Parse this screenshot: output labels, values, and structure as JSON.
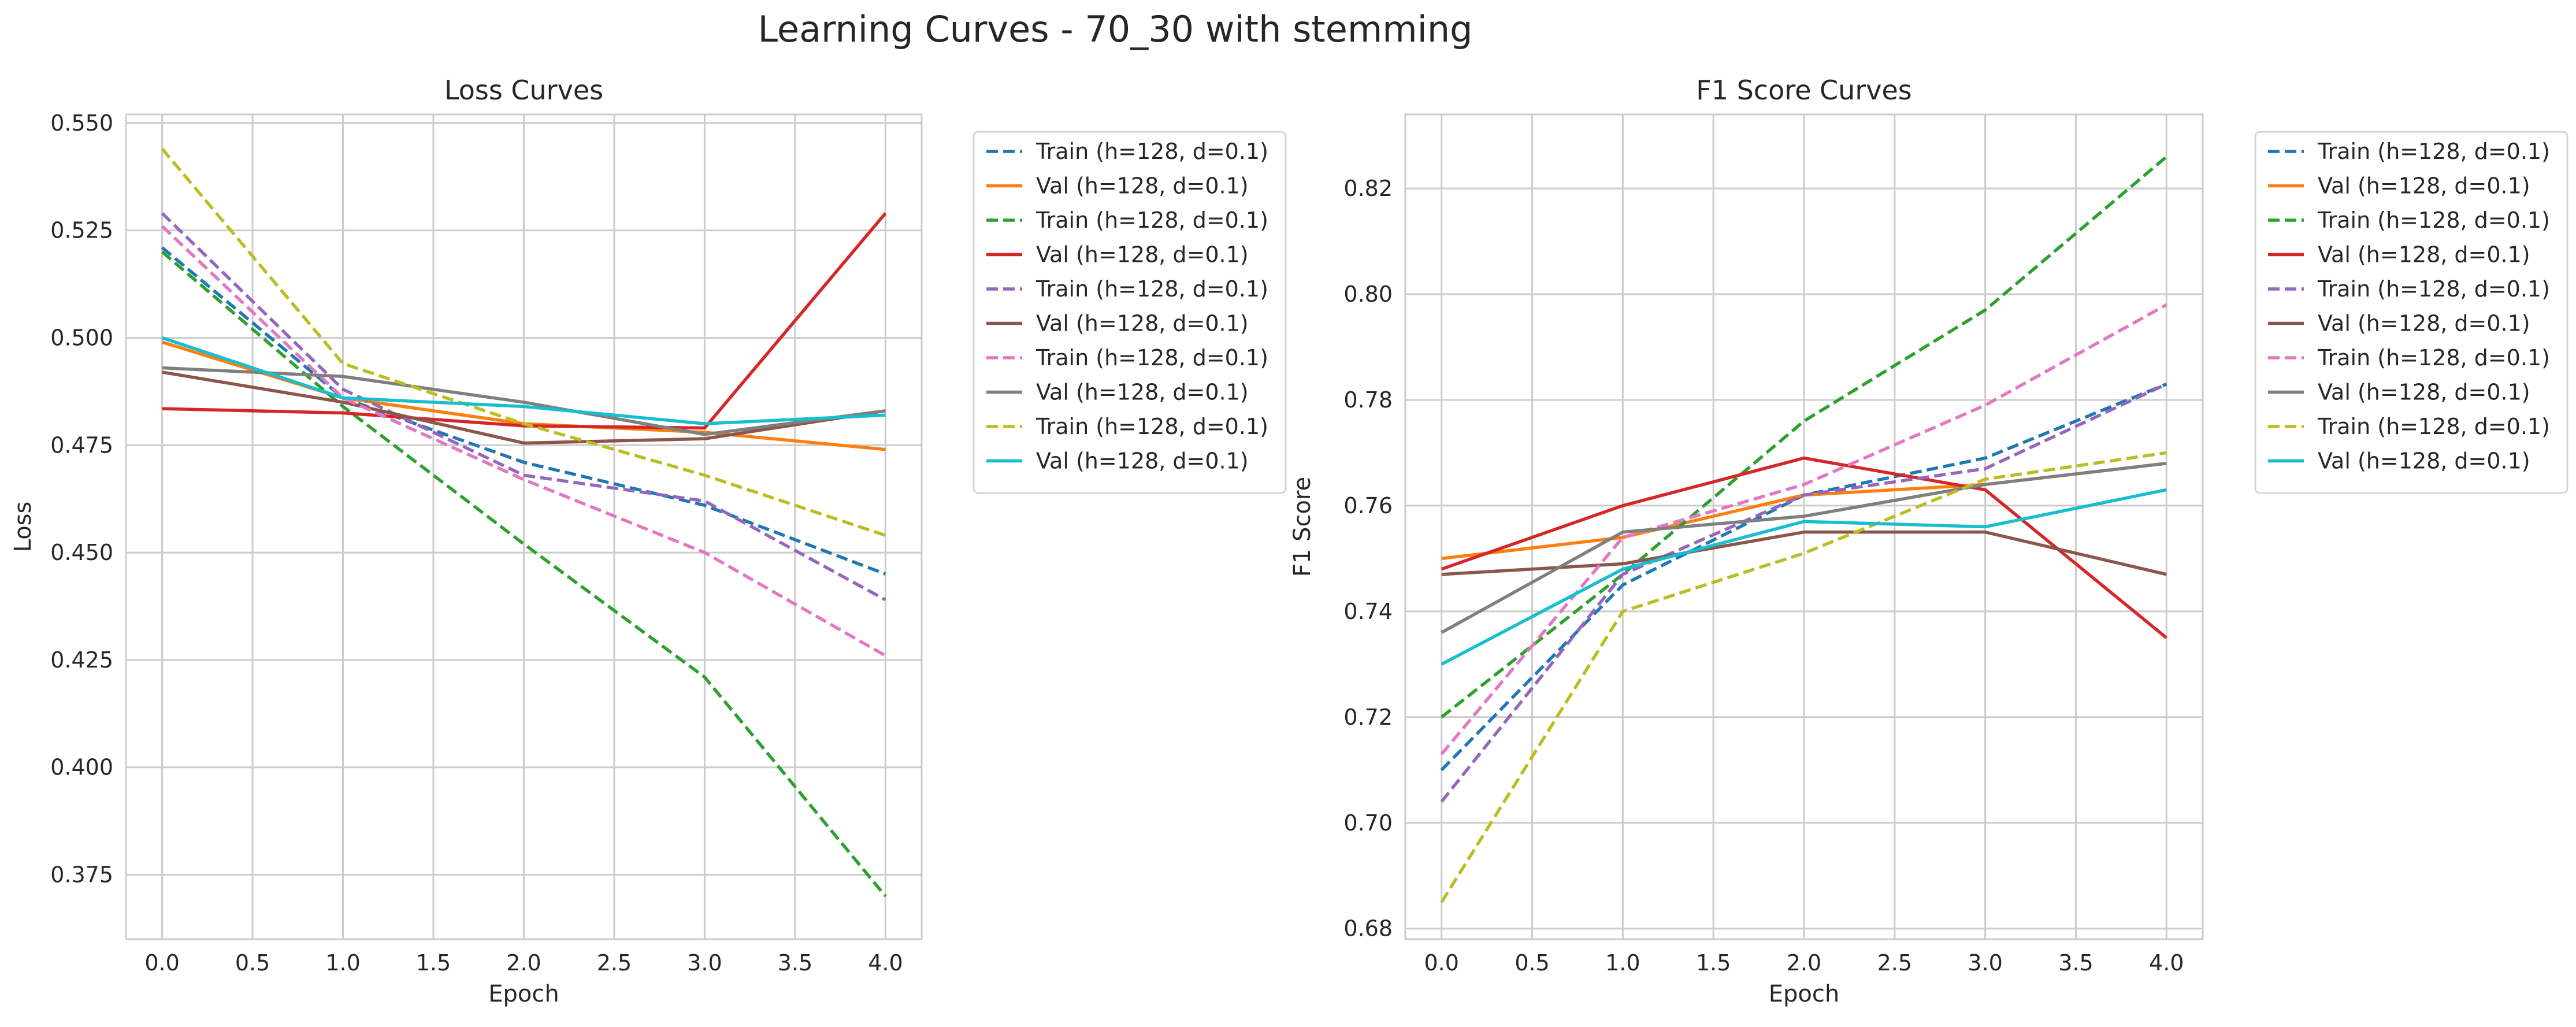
{
  "figure": {
    "title": "Learning Curves - 70_30 with stemming"
  },
  "chart_data": [
    {
      "type": "line",
      "title": "Loss Curves",
      "xlabel": "Epoch",
      "ylabel": "Loss",
      "x": [
        0,
        1,
        2,
        3,
        4
      ],
      "xlim": [
        -0.2,
        4.2
      ],
      "ylim": [
        0.36,
        0.552
      ],
      "xticks": [
        0.0,
        0.5,
        1.0,
        1.5,
        2.0,
        2.5,
        3.0,
        3.5,
        4.0
      ],
      "xtick_labels": [
        "0.0",
        "0.5",
        "1.0",
        "1.5",
        "2.0",
        "2.5",
        "3.0",
        "3.5",
        "4.0"
      ],
      "yticks": [
        0.375,
        0.4,
        0.425,
        0.45,
        0.475,
        0.5,
        0.525,
        0.55
      ],
      "ytick_labels": [
        "0.375",
        "0.400",
        "0.425",
        "0.450",
        "0.475",
        "0.500",
        "0.525",
        "0.550"
      ],
      "grid": true,
      "legend_position": "outside-right",
      "series": [
        {
          "name": "Train (h=128, d=0.1)",
          "color": "#1f77b4",
          "style": "dashed",
          "values": [
            0.521,
            0.486,
            0.471,
            0.461,
            0.445
          ]
        },
        {
          "name": "Val (h=128, d=0.1)",
          "color": "#ff7f0e",
          "style": "solid",
          "values": [
            0.499,
            0.486,
            0.48,
            0.478,
            0.474
          ]
        },
        {
          "name": "Train (h=128, d=0.1)",
          "color": "#2ca02c",
          "style": "dashed",
          "values": [
            0.52,
            0.484,
            0.452,
            0.421,
            0.37
          ]
        },
        {
          "name": "Val (h=128, d=0.1)",
          "color": "#d62728",
          "style": "solid",
          "values": [
            0.4835,
            0.4825,
            0.4795,
            0.479,
            0.529
          ]
        },
        {
          "name": "Train (h=128, d=0.1)",
          "color": "#9467bd",
          "style": "dashed",
          "values": [
            0.529,
            0.488,
            0.468,
            0.462,
            0.439
          ]
        },
        {
          "name": "Val (h=128, d=0.1)",
          "color": "#8c564b",
          "style": "solid",
          "values": [
            0.492,
            0.485,
            0.4755,
            0.4765,
            0.483
          ]
        },
        {
          "name": "Train (h=128, d=0.1)",
          "color": "#e377c2",
          "style": "dashed",
          "values": [
            0.526,
            0.486,
            0.467,
            0.45,
            0.426
          ]
        },
        {
          "name": "Val (h=128, d=0.1)",
          "color": "#7f7f7f",
          "style": "solid",
          "values": [
            0.493,
            0.491,
            0.485,
            0.4775,
            0.483
          ]
        },
        {
          "name": "Train (h=128, d=0.1)",
          "color": "#bcbd22",
          "style": "dashed",
          "values": [
            0.544,
            0.494,
            0.48,
            0.468,
            0.454
          ]
        },
        {
          "name": "Val (h=128, d=0.1)",
          "color": "#17becf",
          "style": "solid",
          "values": [
            0.5,
            0.486,
            0.484,
            0.48,
            0.482
          ]
        }
      ]
    },
    {
      "type": "line",
      "title": "F1 Score Curves",
      "xlabel": "Epoch",
      "ylabel": "F1 Score",
      "x": [
        0,
        1,
        2,
        3,
        4
      ],
      "xlim": [
        -0.2,
        4.2
      ],
      "ylim": [
        0.678,
        0.834
      ],
      "xticks": [
        0.0,
        0.5,
        1.0,
        1.5,
        2.0,
        2.5,
        3.0,
        3.5,
        4.0
      ],
      "xtick_labels": [
        "0.0",
        "0.5",
        "1.0",
        "1.5",
        "2.0",
        "2.5",
        "3.0",
        "3.5",
        "4.0"
      ],
      "yticks": [
        0.68,
        0.7,
        0.72,
        0.74,
        0.76,
        0.78,
        0.8,
        0.82
      ],
      "ytick_labels": [
        "0.68",
        "0.70",
        "0.72",
        "0.74",
        "0.76",
        "0.78",
        "0.80",
        "0.82"
      ],
      "grid": true,
      "legend_position": "outside-right",
      "series": [
        {
          "name": "Train (h=128, d=0.1)",
          "color": "#1f77b4",
          "style": "dashed",
          "values": [
            0.71,
            0.745,
            0.762,
            0.769,
            0.783
          ]
        },
        {
          "name": "Val (h=128, d=0.1)",
          "color": "#ff7f0e",
          "style": "solid",
          "values": [
            0.75,
            0.754,
            0.762,
            0.764,
            0.768
          ]
        },
        {
          "name": "Train (h=128, d=0.1)",
          "color": "#2ca02c",
          "style": "dashed",
          "values": [
            0.72,
            0.747,
            0.776,
            0.797,
            0.826
          ]
        },
        {
          "name": "Val (h=128, d=0.1)",
          "color": "#d62728",
          "style": "solid",
          "values": [
            0.748,
            0.76,
            0.769,
            0.763,
            0.735
          ]
        },
        {
          "name": "Train (h=128, d=0.1)",
          "color": "#9467bd",
          "style": "dashed",
          "values": [
            0.704,
            0.747,
            0.762,
            0.767,
            0.783
          ]
        },
        {
          "name": "Val (h=128, d=0.1)",
          "color": "#8c564b",
          "style": "solid",
          "values": [
            0.747,
            0.749,
            0.755,
            0.755,
            0.747
          ]
        },
        {
          "name": "Train (h=128, d=0.1)",
          "color": "#e377c2",
          "style": "dashed",
          "values": [
            0.713,
            0.754,
            0.764,
            0.779,
            0.798
          ]
        },
        {
          "name": "Val (h=128, d=0.1)",
          "color": "#7f7f7f",
          "style": "solid",
          "values": [
            0.736,
            0.755,
            0.758,
            0.764,
            0.768
          ]
        },
        {
          "name": "Train (h=128, d=0.1)",
          "color": "#bcbd22",
          "style": "dashed",
          "values": [
            0.685,
            0.74,
            0.751,
            0.765,
            0.77
          ]
        },
        {
          "name": "Val (h=128, d=0.1)",
          "color": "#17becf",
          "style": "solid",
          "values": [
            0.73,
            0.748,
            0.757,
            0.756,
            0.763
          ]
        }
      ]
    }
  ]
}
